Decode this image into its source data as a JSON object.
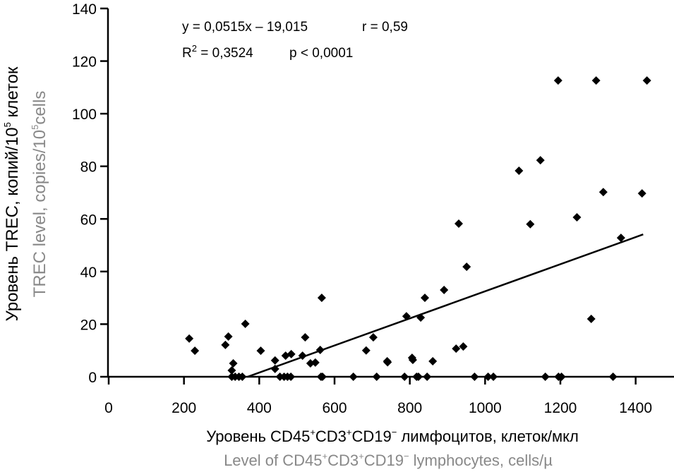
{
  "chart_data": {
    "type": "scatter",
    "title": "",
    "xlabel_ru": [
      "Уровень CD45",
      "+",
      "CD3",
      "+",
      "CD19",
      "−",
      " лимфоцитов, клеток/мкл"
    ],
    "xlabel_en": [
      "Level of CD45",
      "+",
      "CD3",
      "+",
      "CD19",
      "−",
      " lymphocytes, cells/µ"
    ],
    "ylabel_ru": [
      "Уровень TREC, копий/10",
      "5",
      " клеток"
    ],
    "ylabel_en": [
      "TREC level, copies/10",
      "5",
      "cells"
    ],
    "xlim": [
      0,
      1500
    ],
    "ylim": [
      0,
      140
    ],
    "xticks": [
      "0",
      "200",
      "400",
      "600",
      "800",
      "1000",
      "1200",
      "1400"
    ],
    "yticks": [
      "0",
      "20",
      "40",
      "60",
      "80",
      "100",
      "120",
      "140"
    ],
    "xtick_values": [
      0,
      200,
      400,
      600,
      800,
      1000,
      1200,
      1400
    ],
    "ytick_values": [
      0,
      20,
      40,
      60,
      80,
      100,
      120,
      140
    ],
    "grid": false,
    "annotations": {
      "equation": "y = 0,0515x – 19,015",
      "r": "r = 0,59",
      "r2_prefix": "R",
      "r2_sup": "2",
      "r2_rest": " = 0,3524",
      "p": "p < 0,0001"
    },
    "regression": {
      "slope": 0.0515,
      "intercept": -19.015,
      "x_range": [
        369,
        1420
      ]
    },
    "marker_color": "#000000",
    "points": [
      [
        214,
        14.5
      ],
      [
        229,
        9.9
      ],
      [
        318,
        15.3
      ],
      [
        310,
        12.1
      ],
      [
        363,
        20.1
      ],
      [
        331,
        5.1
      ],
      [
        327,
        2.4
      ],
      [
        327,
        0
      ],
      [
        336,
        0
      ],
      [
        346,
        0
      ],
      [
        355,
        0
      ],
      [
        404,
        9.9
      ],
      [
        442,
        6.2
      ],
      [
        442,
        3.0
      ],
      [
        455,
        0
      ],
      [
        470,
        8.0
      ],
      [
        485,
        8.6
      ],
      [
        466,
        0
      ],
      [
        475,
        0
      ],
      [
        484,
        0
      ],
      [
        522,
        15.0
      ],
      [
        515,
        8.0
      ],
      [
        536,
        5.1
      ],
      [
        549,
        5.4
      ],
      [
        566,
        30
      ],
      [
        562,
        10.2
      ],
      [
        564,
        0
      ],
      [
        568,
        0
      ],
      [
        650,
        0
      ],
      [
        703,
        15
      ],
      [
        684,
        10
      ],
      [
        712,
        0
      ],
      [
        740,
        5.9
      ],
      [
        741,
        5.5
      ],
      [
        786,
        0
      ],
      [
        791,
        23
      ],
      [
        806,
        7.2
      ],
      [
        808,
        6.4
      ],
      [
        818,
        0
      ],
      [
        823,
        0
      ],
      [
        846,
        0
      ],
      [
        829,
        22.5
      ],
      [
        840,
        30
      ],
      [
        861,
        5.9
      ],
      [
        891,
        33
      ],
      [
        923,
        10.7
      ],
      [
        942,
        11.5
      ],
      [
        930,
        58.2
      ],
      [
        951,
        41.8
      ],
      [
        972,
        0
      ],
      [
        1008,
        0
      ],
      [
        1022,
        0
      ],
      [
        1090,
        78.3
      ],
      [
        1120,
        58
      ],
      [
        1147,
        82.3
      ],
      [
        1160,
        0
      ],
      [
        1194,
        112.6
      ],
      [
        1195,
        0
      ],
      [
        1203,
        0
      ],
      [
        1244,
        60.6
      ],
      [
        1282,
        22
      ],
      [
        1295,
        112.6
      ],
      [
        1314,
        70.2
      ],
      [
        1340,
        0
      ],
      [
        1361,
        52.8
      ],
      [
        1417,
        69.7
      ],
      [
        1430,
        112.6
      ]
    ]
  }
}
